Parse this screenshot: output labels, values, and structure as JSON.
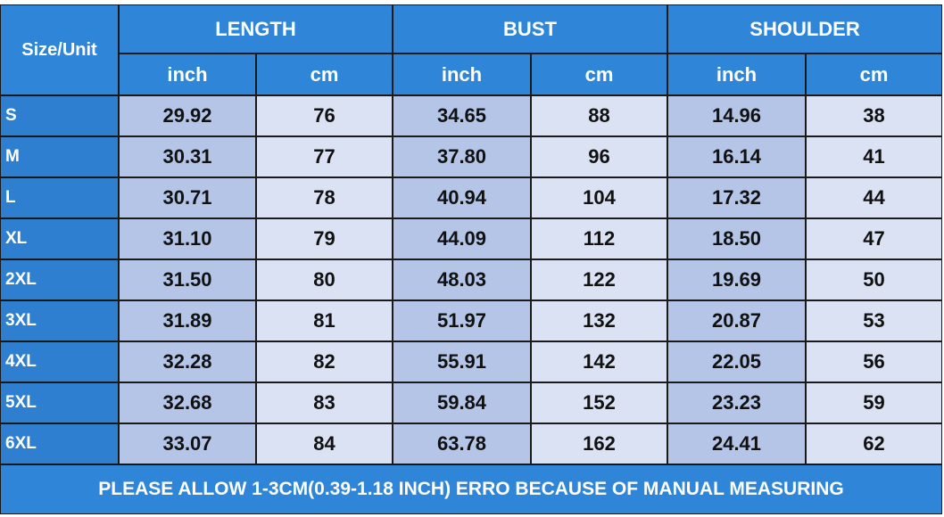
{
  "header": {
    "size_unit": "Size/Unit",
    "groups": [
      "LENGTH",
      "BUST",
      "SHOULDER"
    ],
    "units": [
      "inch",
      "cm",
      "inch",
      "cm",
      "inch",
      "cm"
    ]
  },
  "table": {
    "rows": [
      [
        "S",
        "29.92",
        "76",
        "34.65",
        "88",
        "14.96",
        "38"
      ],
      [
        "M",
        "30.31",
        "77",
        "37.80",
        "96",
        "16.14",
        "41"
      ],
      [
        "L",
        "30.71",
        "78",
        "40.94",
        "104",
        "17.32",
        "44"
      ],
      [
        "XL",
        "31.10",
        "79",
        "44.09",
        "112",
        "18.50",
        "47"
      ],
      [
        "2XL",
        "31.50",
        "80",
        "48.03",
        "122",
        "19.69",
        "50"
      ],
      [
        "3XL",
        "31.89",
        "81",
        "51.97",
        "132",
        "20.87",
        "53"
      ],
      [
        "4XL",
        "32.28",
        "82",
        "55.91",
        "142",
        "22.05",
        "56"
      ],
      [
        "5XL",
        "32.68",
        "83",
        "59.84",
        "152",
        "23.23",
        "59"
      ],
      [
        "6XL",
        "33.07",
        "84",
        "63.78",
        "162",
        "24.41",
        "62"
      ]
    ]
  },
  "footer": "PLEASE ALLOW 1-3CM(0.39-1.18 INCH) ERRO BECAUSE OF MANUAL MEASURING"
}
